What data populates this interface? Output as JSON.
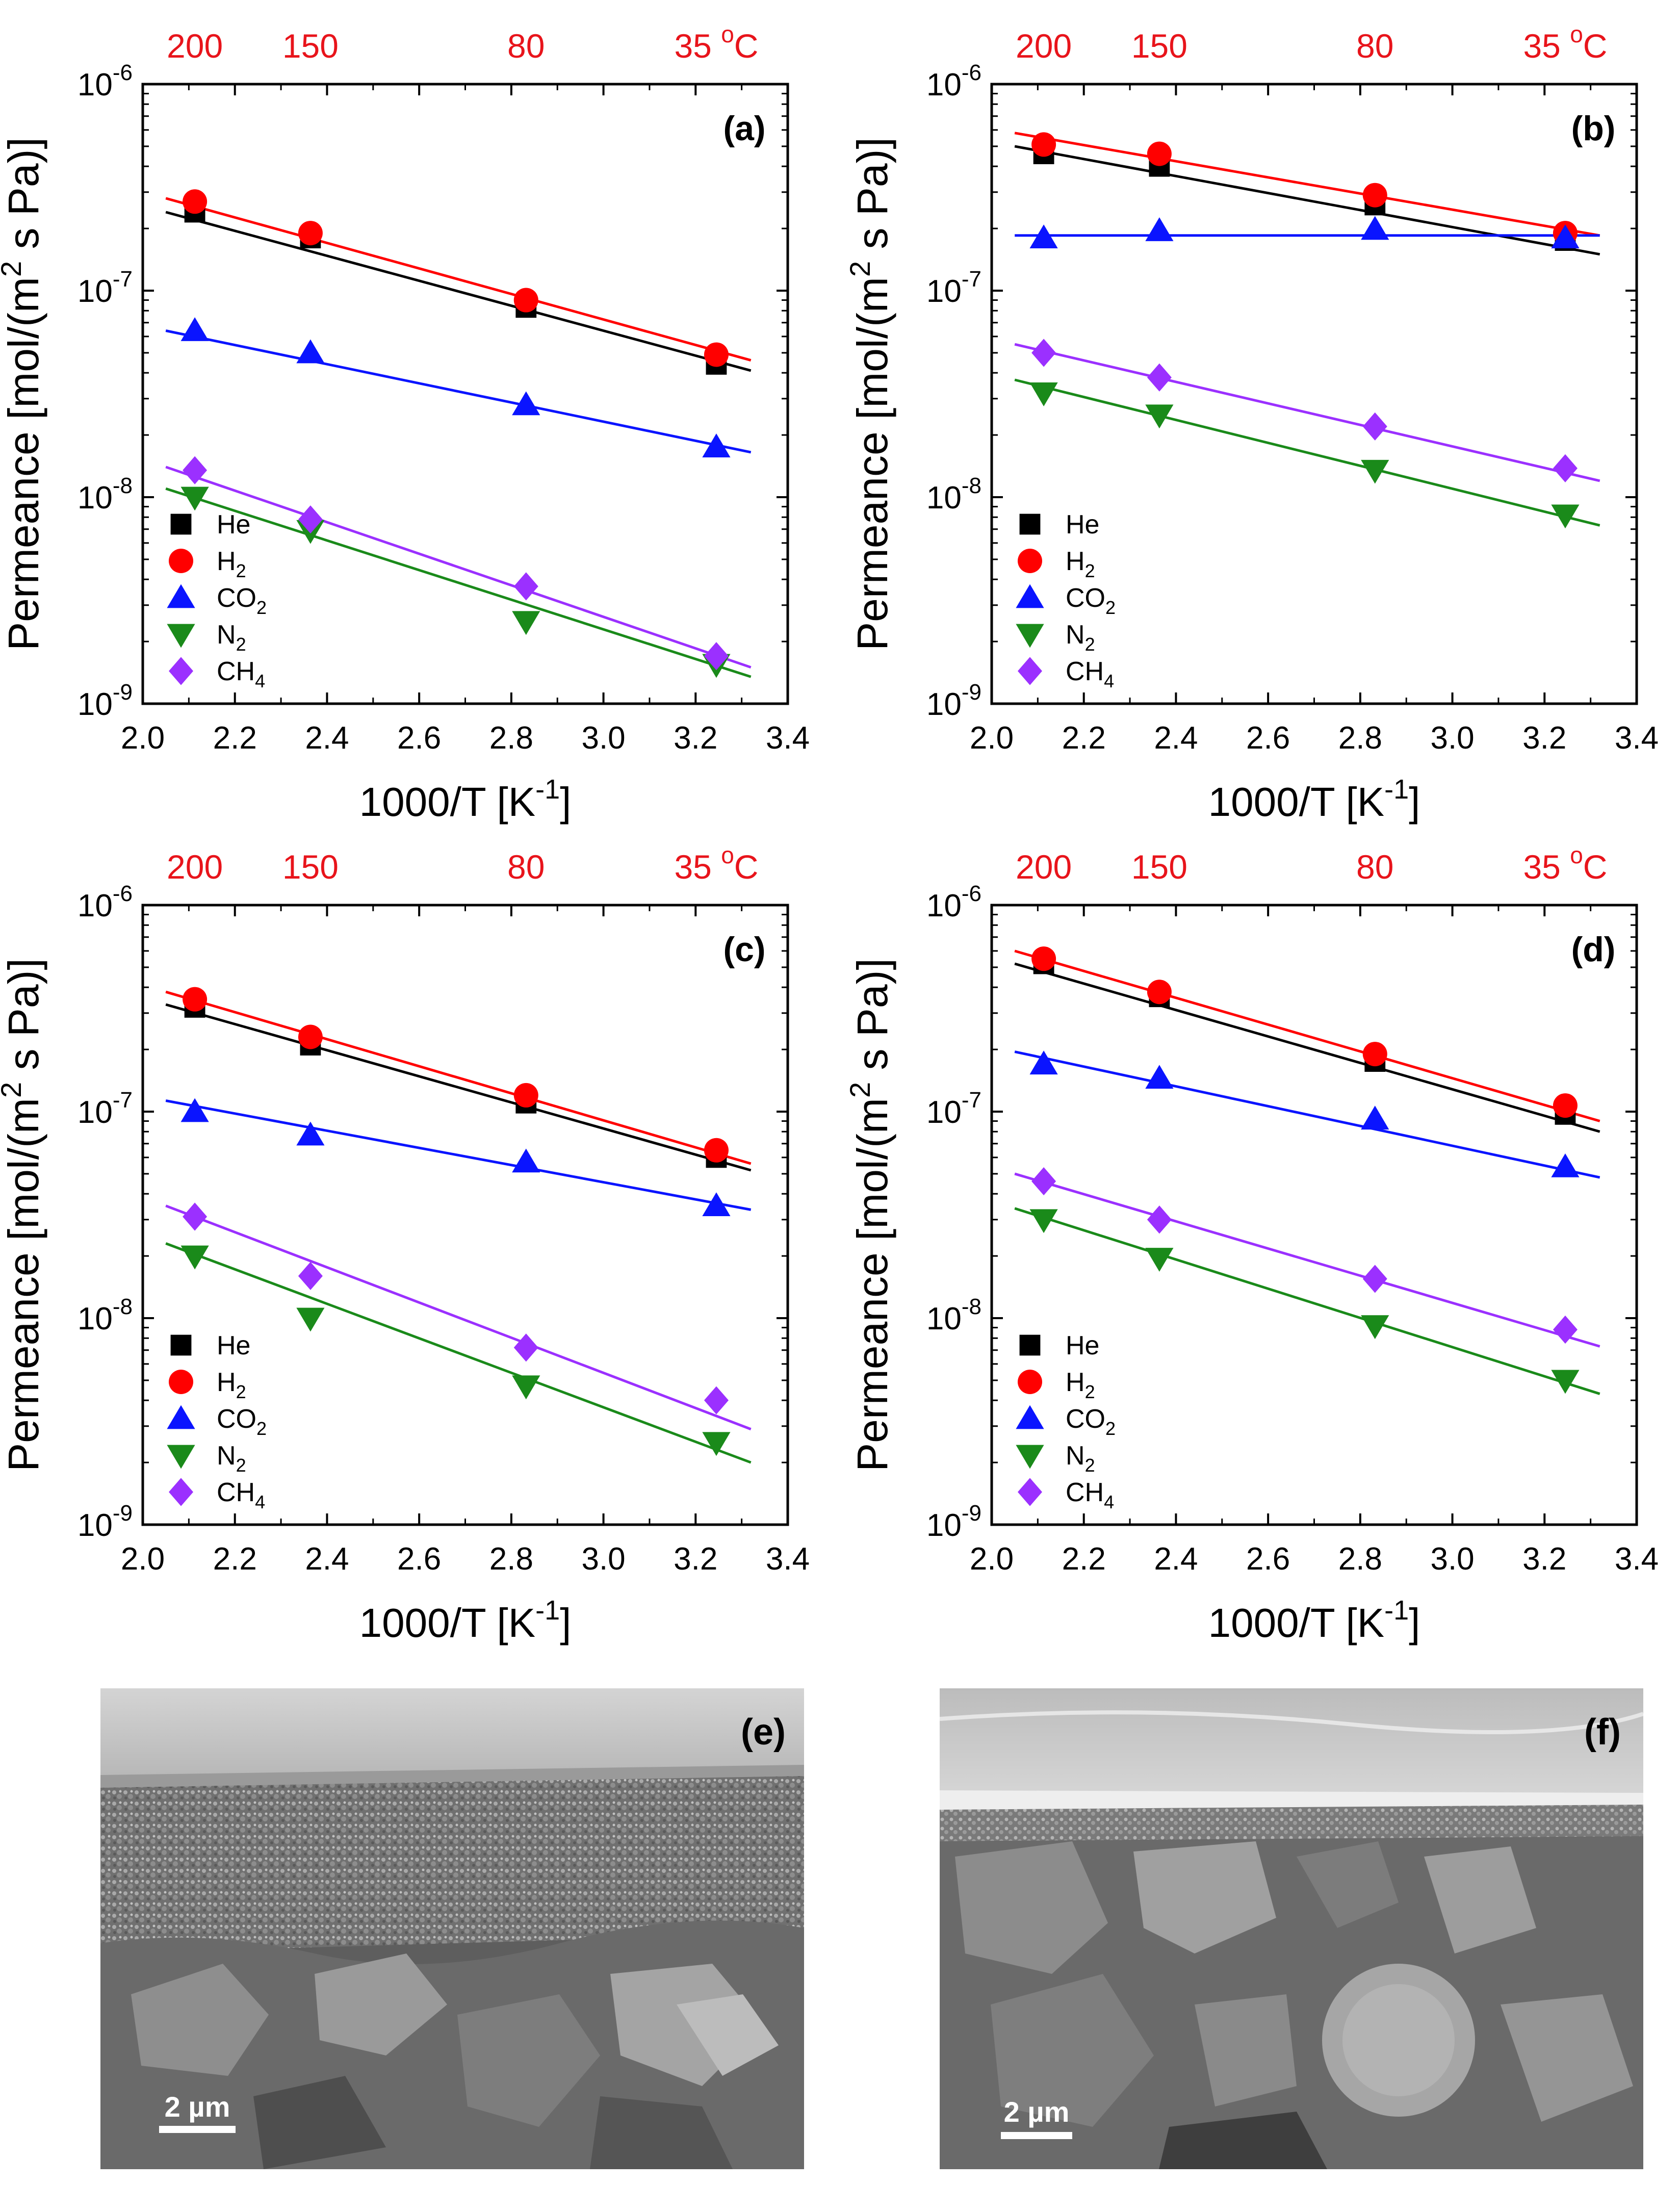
{
  "figure": {
    "axes_defaults": {
      "xlabel": "1000/T [K",
      "xlabel_sup": "-1",
      "xlabel_tail": "]",
      "ylabel": "Permeance [mol/(m",
      "ylabel_sup": "2",
      "ylabel_tail": " s Pa)]",
      "xlim": [
        2.0,
        3.4
      ],
      "ylim": [
        1e-09,
        1e-06
      ],
      "xticks": [
        "2.0",
        "2.2",
        "2.4",
        "2.6",
        "2.8",
        "3.0",
        "3.2",
        "3.4"
      ],
      "yscale": "log",
      "top_axis_labels": [
        "200",
        "150",
        "80",
        "35"
      ],
      "top_axis_unit": "C",
      "top_axis_degree": "o",
      "top_axis_color": "#e8141b"
    },
    "legend_entries": [
      {
        "name": "He",
        "base": "He",
        "sub": "",
        "color": "#000000",
        "marker": "square"
      },
      {
        "name": "H2",
        "base": "H",
        "sub": "2",
        "color": "#ff0000",
        "marker": "circle"
      },
      {
        "name": "CO2",
        "base": "CO",
        "sub": "2",
        "color": "#0a14ff",
        "marker": "triangle-up"
      },
      {
        "name": "N2",
        "base": "N",
        "sub": "2",
        "color": "#1a8a1a",
        "marker": "triangle-down"
      },
      {
        "name": "CH4",
        "base": "CH",
        "sub": "4",
        "color": "#9b30ff",
        "marker": "diamond"
      }
    ],
    "sem_images": [
      {
        "panel": "(e)",
        "scalebar": "2 µm"
      },
      {
        "panel": "(f)",
        "scalebar": "2 µm"
      }
    ]
  },
  "chart_data": [
    {
      "type": "scatter",
      "panel": "(a)",
      "x": [
        2.113,
        2.364,
        2.832,
        3.245
      ],
      "series": [
        {
          "name": "He",
          "values": [
            2.4e-07,
            1.8e-07,
            8.3e-08,
            4.4e-08
          ],
          "fit": [
            2.4e-07,
            4.1e-08
          ]
        },
        {
          "name": "H2",
          "values": [
            2.7e-07,
            1.9e-07,
            9e-08,
            4.9e-08
          ],
          "fit": [
            2.8e-07,
            4.6e-08
          ]
        },
        {
          "name": "CO2",
          "values": [
            6.4e-08,
            5e-08,
            2.8e-08,
            1.75e-08
          ],
          "fit": [
            6.4e-08,
            1.65e-08
          ]
        },
        {
          "name": "N2",
          "values": [
            1e-08,
            6.9e-09,
            2.5e-09,
            1.55e-09
          ],
          "fit": [
            1.1e-08,
            1.35e-09
          ]
        },
        {
          "name": "CH4",
          "values": [
            1.35e-08,
            7.8e-09,
            3.7e-09,
            1.7e-09
          ],
          "fit": [
            1.4e-08,
            1.5e-09
          ]
        }
      ]
    },
    {
      "type": "scatter",
      "panel": "(b)",
      "x": [
        2.113,
        2.364,
        2.832,
        3.245
      ],
      "series": [
        {
          "name": "He",
          "values": [
            4.6e-07,
            4e-07,
            2.6e-07,
            1.75e-07
          ],
          "fit": [
            5e-07,
            1.5e-07
          ]
        },
        {
          "name": "H2",
          "values": [
            5.1e-07,
            4.6e-07,
            2.9e-07,
            1.9e-07
          ],
          "fit": [
            5.8e-07,
            1.85e-07
          ]
        },
        {
          "name": "CO2",
          "values": [
            1.8e-07,
            1.95e-07,
            1.98e-07,
            1.8e-07
          ],
          "fit": [
            1.85e-07,
            1.85e-07
          ]
        },
        {
          "name": "N2",
          "values": [
            3.2e-08,
            2.5e-08,
            1.35e-08,
            8.2e-09
          ],
          "fit": [
            3.7e-08,
            7.3e-09
          ]
        },
        {
          "name": "CH4",
          "values": [
            5e-08,
            3.8e-08,
            2.2e-08,
            1.38e-08
          ],
          "fit": [
            5.5e-08,
            1.2e-08
          ]
        }
      ]
    },
    {
      "type": "scatter",
      "panel": "(c)",
      "x": [
        2.113,
        2.364,
        2.832,
        3.245
      ],
      "series": [
        {
          "name": "He",
          "values": [
            3.2e-07,
            2.1e-07,
            1.1e-07,
            6e-08
          ],
          "fit": [
            3.3e-07,
            5.2e-08
          ]
        },
        {
          "name": "H2",
          "values": [
            3.5e-07,
            2.3e-07,
            1.2e-07,
            6.5e-08
          ],
          "fit": [
            3.8e-07,
            5.6e-08
          ]
        },
        {
          "name": "CO2",
          "values": [
            1e-07,
            7.7e-08,
            5.7e-08,
            3.5e-08
          ],
          "fit": [
            1.13e-07,
            3.35e-08
          ]
        },
        {
          "name": "N2",
          "values": [
            2e-08,
            1e-08,
            4.7e-09,
            2.5e-09
          ],
          "fit": [
            2.3e-08,
            2e-09
          ]
        },
        {
          "name": "CH4",
          "values": [
            3.1e-08,
            1.6e-08,
            7.2e-09,
            4e-09
          ],
          "fit": [
            3.5e-08,
            2.9e-09
          ]
        }
      ]
    },
    {
      "type": "scatter",
      "panel": "(d)",
      "x": [
        2.113,
        2.364,
        2.832,
        3.245
      ],
      "series": [
        {
          "name": "He",
          "values": [
            5.2e-07,
            3.6e-07,
            1.75e-07,
            9.7e-08
          ],
          "fit": [
            5.2e-07,
            8e-08
          ]
        },
        {
          "name": "H2",
          "values": [
            5.5e-07,
            3.8e-07,
            1.9e-07,
            1.07e-07
          ],
          "fit": [
            6e-07,
            9e-08
          ]
        },
        {
          "name": "CO2",
          "values": [
            1.7e-07,
            1.45e-07,
            9.2e-08,
            5.4e-08
          ],
          "fit": [
            1.95e-07,
            4.8e-08
          ]
        },
        {
          "name": "N2",
          "values": [
            3e-08,
            1.95e-08,
            9.2e-09,
            5e-09
          ],
          "fit": [
            3.4e-08,
            4.3e-09
          ]
        },
        {
          "name": "CH4",
          "values": [
            4.6e-08,
            3e-08,
            1.55e-08,
            8.8e-09
          ],
          "fit": [
            5e-08,
            7.3e-09
          ]
        }
      ]
    }
  ]
}
